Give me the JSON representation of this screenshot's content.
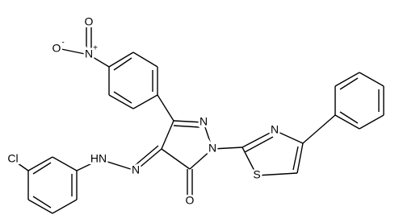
{
  "atoms": [
    "O",
    "-",
    "N",
    "+",
    "O",
    "N",
    "N",
    "N",
    "S",
    "Cl",
    "HN",
    "N",
    "O"
  ]
}
